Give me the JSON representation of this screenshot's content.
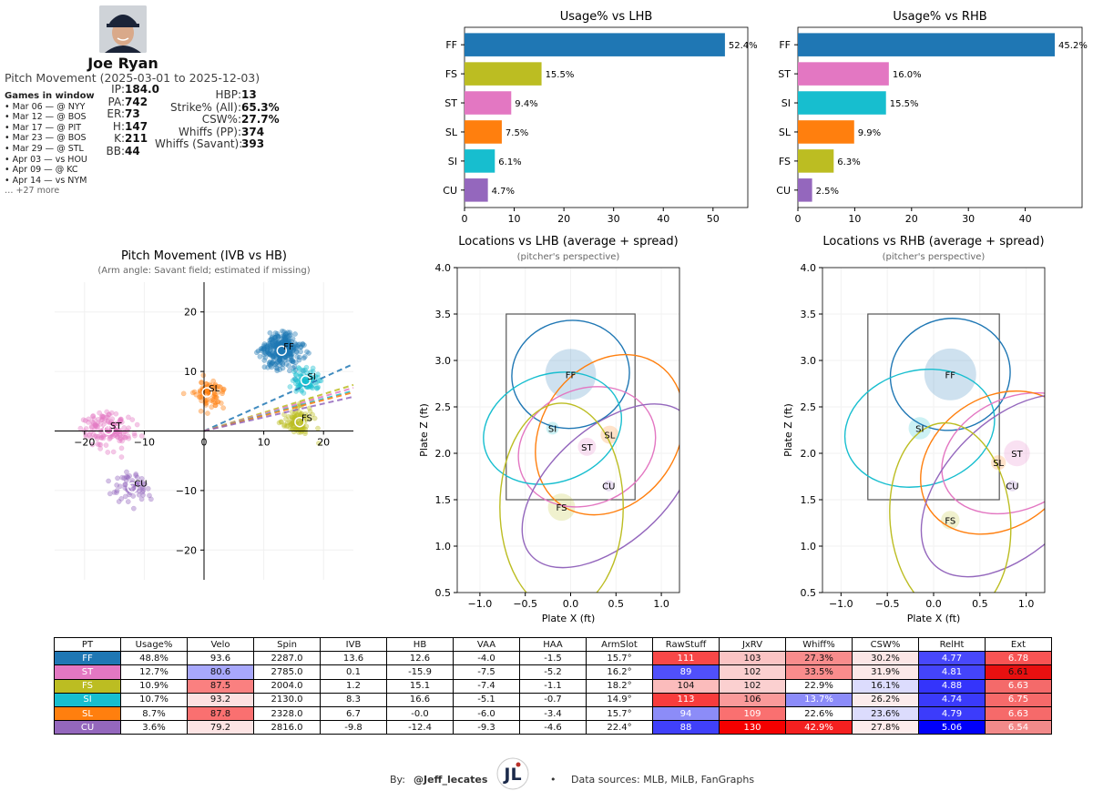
{
  "header": {
    "name": "Joe Ryan",
    "movement_range": "Pitch Movement (2025-03-01 to 2025-12-03)",
    "games_title": "Games in window",
    "games": [
      "• Mar 06 — @ NYY",
      "• Mar 12 — @ BOS",
      "• Mar 17 — @ PIT",
      "• Mar 23 — @ BOS",
      "• Mar 29 — @ STL",
      "• Apr 03 — vs HOU",
      "• Apr 09 — @ KC",
      "• Apr 14 — vs NYM"
    ],
    "games_more": "… +27 more",
    "stats_left": [
      {
        "label": "IP:",
        "value": "184.0"
      },
      {
        "label": "PA:",
        "value": "742"
      },
      {
        "label": "ER:",
        "value": "73"
      },
      {
        "label": "H:",
        "value": "147"
      },
      {
        "label": "K:",
        "value": "211"
      },
      {
        "label": "BB:",
        "value": "44"
      }
    ],
    "stats_right": [
      {
        "label": "HBP:",
        "value": "13"
      },
      {
        "label": "Strike% (All):",
        "value": "65.3%"
      },
      {
        "label": "CSW%:",
        "value": "27.7%"
      },
      {
        "label": "Whiffs (PP):",
        "value": "374"
      },
      {
        "label": "Whiffs (Savant):",
        "value": "393"
      }
    ]
  },
  "colors": {
    "FF": "#1f77b4",
    "FS": "#bcbd22",
    "ST": "#e377c2",
    "SL": "#ff7f0e",
    "SI": "#17becf",
    "CU": "#9467bd"
  },
  "chart_data": [
    {
      "type": "bar",
      "orientation": "horizontal",
      "title": "Usage% vs LHB",
      "categories": [
        "FF",
        "FS",
        "ST",
        "SL",
        "SI",
        "CU"
      ],
      "values": [
        52.4,
        15.5,
        9.4,
        7.5,
        6.1,
        4.7
      ],
      "labels": [
        "52.4%",
        "15.5%",
        "9.4%",
        "7.5%",
        "6.1%",
        "4.7%"
      ],
      "xlim": [
        0,
        57
      ],
      "xticks": [
        0,
        10,
        20,
        30,
        40,
        50
      ]
    },
    {
      "type": "bar",
      "orientation": "horizontal",
      "title": "Usage% vs RHB",
      "categories": [
        "FF",
        "ST",
        "SI",
        "SL",
        "FS",
        "CU"
      ],
      "values": [
        45.2,
        16.0,
        15.5,
        9.9,
        6.3,
        2.5
      ],
      "labels": [
        "45.2%",
        "16.0%",
        "15.5%",
        "9.9%",
        "6.3%",
        "2.5%"
      ],
      "xlim": [
        0,
        50
      ],
      "xticks": [
        0,
        10,
        20,
        30,
        40
      ]
    },
    {
      "type": "scatter",
      "title": "Pitch Movement (IVB vs HB)",
      "subtitle": "(Arm angle: Savant field; estimated if missing)",
      "xlim": [
        -25,
        25
      ],
      "ylim": [
        -25,
        25
      ],
      "xticks": [
        -20,
        -10,
        0,
        10,
        20
      ],
      "yticks": [
        -20,
        -10,
        0,
        10,
        20
      ],
      "xtick_labels": [
        "−20",
        "−10",
        "0",
        "10",
        "20"
      ],
      "ytick_labels": [
        "−20",
        "−10",
        "0",
        "10",
        "20"
      ],
      "series": [
        {
          "name": "FF",
          "hb": 13,
          "ivb": 13.5,
          "sdx": 3.0,
          "sdy": 2.5,
          "n": 320
        },
        {
          "name": "SI",
          "hb": 17,
          "ivb": 8.5,
          "sdx": 2.0,
          "sdy": 2.0,
          "n": 90
        },
        {
          "name": "SL",
          "hb": 0.5,
          "ivb": 6.5,
          "sdx": 2.5,
          "sdy": 2.5,
          "n": 80
        },
        {
          "name": "FS",
          "hb": 16,
          "ivb": 1.5,
          "sdx": 2.5,
          "sdy": 2.5,
          "n": 110
        },
        {
          "name": "ST",
          "hb": -16,
          "ivb": 0.2,
          "sdx": 4.0,
          "sdy": 2.8,
          "n": 140
        },
        {
          "name": "CU",
          "hb": -12,
          "ivb": -9.5,
          "sdx": 3.0,
          "sdy": 2.5,
          "n": 60
        }
      ],
      "arm_lines": [
        {
          "name": "FF",
          "slope": 0.45
        },
        {
          "name": "FS",
          "slope": 0.31
        },
        {
          "name": "ST",
          "slope": 0.29
        },
        {
          "name": "SI",
          "slope": 0.27
        },
        {
          "name": "SL",
          "slope": 0.26
        },
        {
          "name": "CU",
          "slope": 0.23
        }
      ]
    },
    {
      "type": "scatter",
      "title": "Locations vs LHB (average + spread)",
      "subtitle": "(pitcher's perspective)",
      "xlabel": "Plate X (ft)",
      "ylabel": "Plate Z (ft)",
      "xlim": [
        -1.25,
        1.2
      ],
      "ylim": [
        0.5,
        4.0
      ],
      "xticks": [
        -1.0,
        -0.5,
        0.0,
        0.5,
        1.0
      ],
      "yticks": [
        0.5,
        1.0,
        1.5,
        2.0,
        2.5,
        3.0,
        3.5,
        4.0
      ],
      "xtick_labels": [
        "−1.0",
        "−0.5",
        "0.0",
        "0.5",
        "1.0"
      ],
      "ytick_labels": [
        "0.5",
        "1.0",
        "1.5",
        "2.0",
        "2.5",
        "3.0",
        "3.5",
        "4.0"
      ],
      "zone": {
        "x": [
          -0.71,
          0.71
        ],
        "z": [
          1.5,
          3.5
        ]
      },
      "series": [
        {
          "name": "FF",
          "x": 0.0,
          "z": 2.85,
          "rx": 0.65,
          "rz": 0.58,
          "rot": -10,
          "blob": 0.28
        },
        {
          "name": "SL",
          "x": 0.43,
          "z": 2.2,
          "rx": 0.75,
          "rz": 0.92,
          "rot": 35,
          "blob": 0.1
        },
        {
          "name": "ST",
          "x": 0.18,
          "z": 2.07,
          "rx": 0.78,
          "rz": 0.62,
          "rot": -25,
          "blob": 0.1
        },
        {
          "name": "SI",
          "x": -0.2,
          "z": 2.27,
          "rx": 0.78,
          "rz": 0.58,
          "rot": -20,
          "blob": 0.07
        },
        {
          "name": "CU",
          "x": 0.42,
          "z": 1.65,
          "rx": 1.15,
          "rz": 0.62,
          "rot": -42,
          "blob": 0.02
        },
        {
          "name": "FS",
          "x": -0.1,
          "z": 1.42,
          "rx": 0.68,
          "rz": 1.12,
          "rot": 0,
          "blob": 0.15
        }
      ]
    },
    {
      "type": "scatter",
      "title": "Locations vs RHB (average + spread)",
      "subtitle": "(pitcher's perspective)",
      "xlabel": "Plate X (ft)",
      "ylabel": "Plate Z (ft)",
      "xlim": [
        -1.2,
        1.2
      ],
      "ylim": [
        0.5,
        4.0
      ],
      "xticks": [
        -1.0,
        -0.5,
        0.0,
        0.5,
        1.0
      ],
      "yticks": [
        0.5,
        1.0,
        1.5,
        2.0,
        2.5,
        3.0,
        3.5,
        4.0
      ],
      "xtick_labels": [
        "−1.0",
        "−0.5",
        "0.0",
        "0.5",
        "1.0"
      ],
      "ytick_labels": [
        "0.5",
        "1.0",
        "1.5",
        "2.0",
        "2.5",
        "3.0",
        "3.5",
        "4.0"
      ],
      "zone": {
        "x": [
          -0.71,
          0.71
        ],
        "z": [
          1.5,
          3.5
        ]
      },
      "series": [
        {
          "name": "FF",
          "x": 0.18,
          "z": 2.85,
          "rx": 0.65,
          "rz": 0.6,
          "rot": -15,
          "blob": 0.28
        },
        {
          "name": "SI",
          "x": -0.15,
          "z": 2.27,
          "rx": 0.82,
          "rz": 0.62,
          "rot": -15,
          "blob": 0.12
        },
        {
          "name": "ST",
          "x": 0.9,
          "z": 2.0,
          "rx": 0.85,
          "rz": 0.6,
          "rot": -25,
          "blob": 0.14
        },
        {
          "name": "SL",
          "x": 0.7,
          "z": 1.9,
          "rx": 0.9,
          "rz": 0.7,
          "rot": -35,
          "blob": 0.08
        },
        {
          "name": "CU",
          "x": 0.85,
          "z": 1.65,
          "rx": 1.2,
          "rz": 0.7,
          "rot": -45,
          "blob": 0.02
        },
        {
          "name": "FS",
          "x": 0.18,
          "z": 1.28,
          "rx": 0.65,
          "rz": 1.05,
          "rot": -5,
          "blob": 0.1
        }
      ]
    },
    {
      "type": "table",
      "columns": [
        "PT",
        "Usage%",
        "Velo",
        "Spin",
        "IVB",
        "HB",
        "VAA",
        "HAA",
        "ArmSlot",
        "RawStuff",
        "JxRV",
        "Whiff%",
        "CSW%",
        "RelHt",
        "Ext"
      ],
      "rows": [
        [
          "FF",
          "48.8%",
          "93.6",
          "2287.0",
          "13.6",
          "12.6",
          "-4.0",
          "-1.5",
          "15.7°",
          "111",
          "103",
          "27.3%",
          "30.2%",
          "4.77",
          "6.78"
        ],
        [
          "ST",
          "12.7%",
          "80.6",
          "2785.0",
          "0.1",
          "-15.9",
          "-7.5",
          "-5.2",
          "16.2°",
          "89",
          "102",
          "33.5%",
          "31.9%",
          "4.81",
          "6.61"
        ],
        [
          "FS",
          "10.9%",
          "87.5",
          "2004.0",
          "1.2",
          "15.1",
          "-7.4",
          "-1.1",
          "18.2°",
          "104",
          "102",
          "22.9%",
          "16.1%",
          "4.88",
          "6.63"
        ],
        [
          "SI",
          "10.7%",
          "93.2",
          "2130.0",
          "8.3",
          "16.6",
          "-5.1",
          "-0.7",
          "14.9°",
          "113",
          "106",
          "13.7%",
          "26.2%",
          "4.74",
          "6.75"
        ],
        [
          "SL",
          "8.7%",
          "87.8",
          "2328.0",
          "6.7",
          "-0.0",
          "-6.0",
          "-3.4",
          "15.7°",
          "94",
          "109",
          "22.6%",
          "23.6%",
          "4.79",
          "6.63"
        ],
        [
          "CU",
          "3.6%",
          "79.2",
          "2816.0",
          "-9.8",
          "-12.4",
          "-9.3",
          "-4.6",
          "22.4°",
          "88",
          "130",
          "42.9%",
          "27.8%",
          "5.06",
          "6.54"
        ]
      ],
      "cell_colors": [
        [
          "#1f77b4",
          "#ffffff",
          "#ffffff",
          "#ffffff",
          "#ffffff",
          "#ffffff",
          "#ffffff",
          "#ffffff",
          "#ffffff",
          "#f84848",
          "#fbc4c4",
          "#f88c8c",
          "#fbe6e6",
          "#4848fb",
          "#f85454"
        ],
        [
          "#e377c2",
          "#ffffff",
          "#a8a8fc",
          "#ffffff",
          "#ffffff",
          "#ffffff",
          "#ffffff",
          "#ffffff",
          "#ffffff",
          "#5050fa",
          "#fbd0d0",
          "#fa8c8c",
          "#fbe8e8",
          "#4444fb",
          "#e81010"
        ],
        [
          "#bcbd22",
          "#ffffff",
          "#fa8080",
          "#ffffff",
          "#ffffff",
          "#ffffff",
          "#ffffff",
          "#ffffff",
          "#ffffff",
          "#fbbcbc",
          "#fbd0d0",
          "#ffffff",
          "#dcdcfd",
          "#3434fb",
          "#f46a6a"
        ],
        [
          "#17becf",
          "#ffffff",
          "#fde0e0",
          "#ffffff",
          "#ffffff",
          "#ffffff",
          "#ffffff",
          "#ffffff",
          "#ffffff",
          "#f83c3c",
          "#fa9a9a",
          "#8c8cf9",
          "#fcecec",
          "#3a3afb",
          "#f66a6a"
        ],
        [
          "#ff7f0e",
          "#ffffff",
          "#fa7070",
          "#ffffff",
          "#ffffff",
          "#ffffff",
          "#ffffff",
          "#ffffff",
          "#ffffff",
          "#8c8cf8",
          "#fa7070",
          "#ffffff",
          "#dcdcfd",
          "#3c3cfb",
          "#f66a6a"
        ],
        [
          "#9467bd",
          "#ffffff",
          "#fde4e4",
          "#ffffff",
          "#ffffff",
          "#ffffff",
          "#ffffff",
          "#ffffff",
          "#ffffff",
          "#4040fa",
          "#f40000",
          "#f42020",
          "#fdecec",
          "#0000fa",
          "#f28a8a"
        ]
      ],
      "text_white": [
        [
          true,
          false,
          false,
          false,
          false,
          false,
          false,
          false,
          false,
          true,
          false,
          false,
          false,
          true,
          true
        ],
        [
          true,
          false,
          false,
          false,
          false,
          false,
          false,
          false,
          false,
          true,
          false,
          false,
          false,
          true,
          false
        ],
        [
          true,
          false,
          false,
          false,
          false,
          false,
          false,
          false,
          false,
          false,
          false,
          false,
          false,
          true,
          true
        ],
        [
          true,
          false,
          false,
          false,
          false,
          false,
          false,
          false,
          false,
          true,
          false,
          true,
          false,
          true,
          true
        ],
        [
          true,
          false,
          false,
          false,
          false,
          false,
          false,
          false,
          false,
          true,
          true,
          false,
          false,
          true,
          true
        ],
        [
          true,
          false,
          false,
          false,
          false,
          false,
          false,
          false,
          false,
          true,
          true,
          true,
          false,
          true,
          true
        ]
      ]
    }
  ],
  "footer": {
    "by_label": "By:",
    "handle": "@Jeff_lecates",
    "bullet": "•",
    "sources": "Data sources: MLB, MiLB, FanGraphs"
  }
}
